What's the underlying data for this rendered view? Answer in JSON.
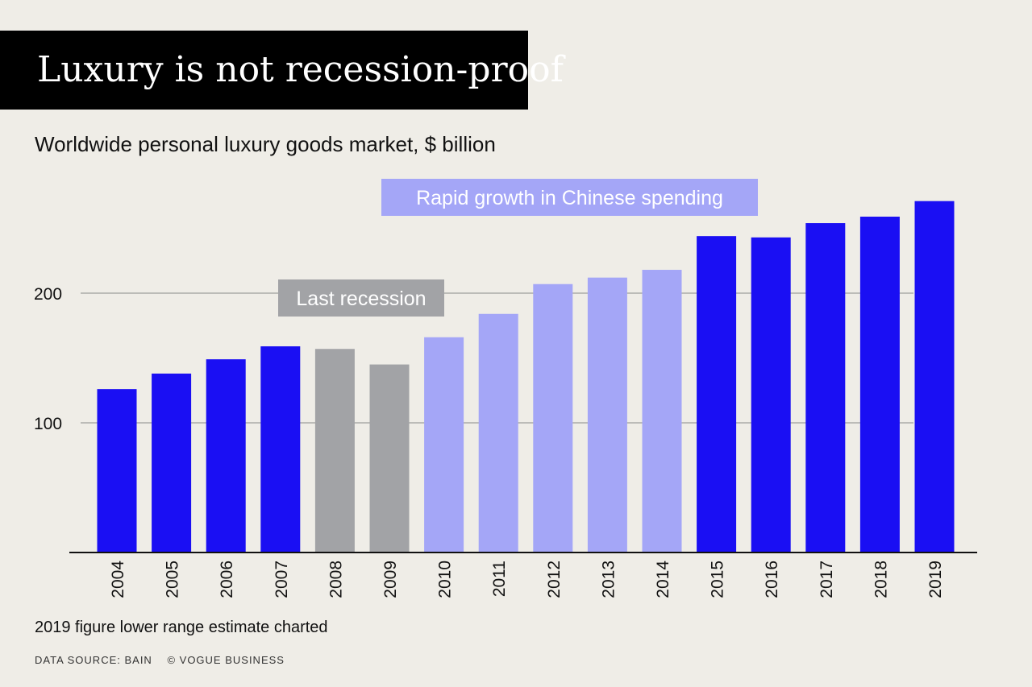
{
  "header": {
    "title": "Luxury is not recession-proof",
    "subtitle": "Worldwide personal luxury goods market, $ billion"
  },
  "chart_data": {
    "type": "bar",
    "title": "Luxury is not recession-proof",
    "subtitle": "Worldwide personal luxury goods market, $ billion",
    "xlabel": "",
    "ylabel": "",
    "ylim": [
      0,
      270
    ],
    "yticks": [
      100,
      200
    ],
    "grid": "horizontal",
    "categories": [
      "2004",
      "2005",
      "2006",
      "2007",
      "2008",
      "2009",
      "2010",
      "2011",
      "2012",
      "2013",
      "2014",
      "2015",
      "2016",
      "2017",
      "2018",
      "2019"
    ],
    "values": [
      126,
      138,
      149,
      159,
      157,
      145,
      166,
      184,
      207,
      212,
      218,
      244,
      243,
      254,
      259,
      271
    ],
    "bar_groups": [
      "normal",
      "normal",
      "normal",
      "normal",
      "recession",
      "recession",
      "china",
      "china",
      "china",
      "china",
      "china",
      "normal",
      "normal",
      "normal",
      "normal",
      "normal"
    ],
    "colors": {
      "normal": "#1a0ff3",
      "recession": "#a2a3a6",
      "china": "#a4a6f7",
      "axis": "#111111",
      "grid": "#8a8a8a"
    },
    "annotations": [
      {
        "text": "Last recession",
        "group": "recession",
        "color": "#a2a3a6",
        "text_color": "#ffffff"
      },
      {
        "text": "Rapid growth in Chinese spending",
        "group": "china",
        "color": "#a4a6f7",
        "text_color": "#ffffff"
      }
    ]
  },
  "footer": {
    "note": "2019 figure lower range estimate charted",
    "source": "DATA SOURCE: BAIN",
    "copyright": "© VOGUE BUSINESS"
  }
}
